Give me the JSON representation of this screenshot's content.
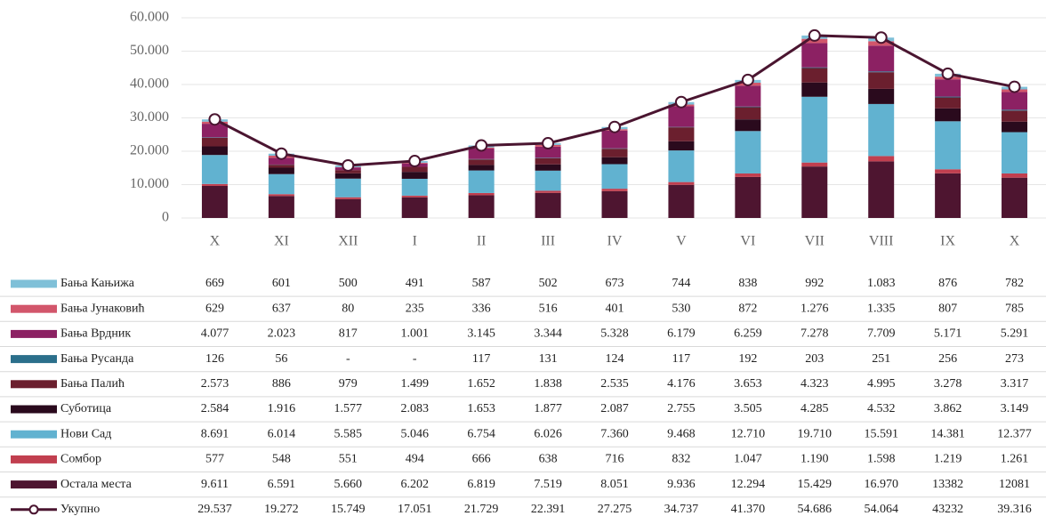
{
  "chart_data": {
    "type": "bar",
    "stacked": true,
    "categories": [
      "X",
      "XI",
      "XII",
      "I",
      "II",
      "III",
      "IV",
      "V",
      "VI",
      "VII",
      "VIII",
      "IX",
      "X"
    ],
    "ylim": [
      0,
      60000
    ],
    "yticks": [
      0,
      {
        "value": 10000,
        "label": "10.000"
      },
      {
        "value": 20000,
        "label": "20.000"
      },
      {
        "value": 30000,
        "label": "30.000"
      },
      {
        "value": 40000,
        "label": "40.000"
      },
      {
        "value": 50000,
        "label": "50.000"
      },
      {
        "value": 60000,
        "label": "60.000"
      }
    ],
    "grid": true,
    "series": [
      {
        "name": "Бања Кањижа",
        "color": "#7fc0d8",
        "values": [
          669,
          601,
          500,
          491,
          587,
          502,
          673,
          744,
          838,
          992,
          1083,
          876,
          782
        ],
        "value_labels": [
          "669",
          "601",
          "500",
          "491",
          "587",
          "502",
          "673",
          "744",
          "838",
          "992",
          "1.083",
          "876",
          "782"
        ]
      },
      {
        "name": "Бања Јунаковић",
        "color": "#d2566b",
        "values": [
          629,
          637,
          80,
          235,
          336,
          516,
          401,
          530,
          872,
          1276,
          1335,
          807,
          785
        ],
        "value_labels": [
          "629",
          "637",
          "80",
          "235",
          "336",
          "516",
          "401",
          "530",
          "872",
          "1.276",
          "1.335",
          "807",
          "785"
        ]
      },
      {
        "name": "Бања Врдник",
        "color": "#8c2163",
        "values": [
          4077,
          2023,
          817,
          1001,
          3145,
          3344,
          5328,
          6179,
          6259,
          7278,
          7709,
          5171,
          5291
        ],
        "value_labels": [
          "4.077",
          "2.023",
          "817",
          "1.001",
          "3.145",
          "3.344",
          "5.328",
          "6.179",
          "6.259",
          "7.278",
          "7.709",
          "5.171",
          "5.291"
        ]
      },
      {
        "name": "Бања Русанда",
        "color": "#2b6f8b",
        "values": [
          126,
          56,
          null,
          null,
          117,
          131,
          124,
          117,
          192,
          203,
          251,
          256,
          273
        ],
        "value_labels": [
          "126",
          "56",
          "-",
          "-",
          "117",
          "131",
          "124",
          "117",
          "192",
          "203",
          "251",
          "256",
          "273"
        ]
      },
      {
        "name": "Бања Палић",
        "color": "#6b1f2e",
        "values": [
          2573,
          886,
          979,
          1499,
          1652,
          1838,
          2535,
          4176,
          3653,
          4323,
          4995,
          3278,
          3317
        ],
        "value_labels": [
          "2.573",
          "886",
          "979",
          "1.499",
          "1.652",
          "1.838",
          "2.535",
          "4.176",
          "3.653",
          "4.323",
          "4.995",
          "3.278",
          "3.317"
        ]
      },
      {
        "name": "Суботица",
        "color": "#2a0a1d",
        "values": [
          2584,
          1916,
          1577,
          2083,
          1653,
          1877,
          2087,
          2755,
          3505,
          4285,
          4532,
          3862,
          3149
        ],
        "value_labels": [
          "2.584",
          "1.916",
          "1.577",
          "2.083",
          "1.653",
          "1.877",
          "2.087",
          "2.755",
          "3.505",
          "4.285",
          "4.532",
          "3.862",
          "3.149"
        ]
      },
      {
        "name": "Нови Сад",
        "color": "#61b2d0",
        "values": [
          8691,
          6014,
          5585,
          5046,
          6754,
          6026,
          7360,
          9468,
          12710,
          19710,
          15591,
          14381,
          12377
        ],
        "value_labels": [
          "8.691",
          "6.014",
          "5.585",
          "5.046",
          "6.754",
          "6.026",
          "7.360",
          "9.468",
          "12.710",
          "19.710",
          "15.591",
          "14.381",
          "12.377"
        ]
      },
      {
        "name": "Сомбор",
        "color": "#c13f4f",
        "values": [
          577,
          548,
          551,
          494,
          666,
          638,
          716,
          832,
          1047,
          1190,
          1598,
          1219,
          1261
        ],
        "value_labels": [
          "577",
          "548",
          "551",
          "494",
          "666",
          "638",
          "716",
          "832",
          "1.047",
          "1.190",
          "1.598",
          "1.219",
          "1.261"
        ]
      },
      {
        "name": "Остала места",
        "color": "#4e1530",
        "values": [
          9611,
          6591,
          5660,
          6202,
          6819,
          7519,
          8051,
          9936,
          12294,
          15429,
          16970,
          13382,
          12081
        ],
        "value_labels": [
          "9.611",
          "6.591",
          "5.660",
          "6.202",
          "6.819",
          "7.519",
          "8.051",
          "9.936",
          "12.294",
          "15.429",
          "16.970",
          "13382",
          "12081"
        ]
      },
      {
        "name": "Укупно",
        "type": "line",
        "color": "#4a1530",
        "values": [
          29537,
          19272,
          15749,
          17051,
          21729,
          22391,
          27275,
          34737,
          41370,
          54686,
          54064,
          43232,
          39316
        ],
        "value_labels": [
          "29.537",
          "19.272",
          "15.749",
          "17.051",
          "21.729",
          "22.391",
          "27.275",
          "34.737",
          "41.370",
          "54.686",
          "54.064",
          "43232",
          "39.316"
        ]
      }
    ]
  }
}
